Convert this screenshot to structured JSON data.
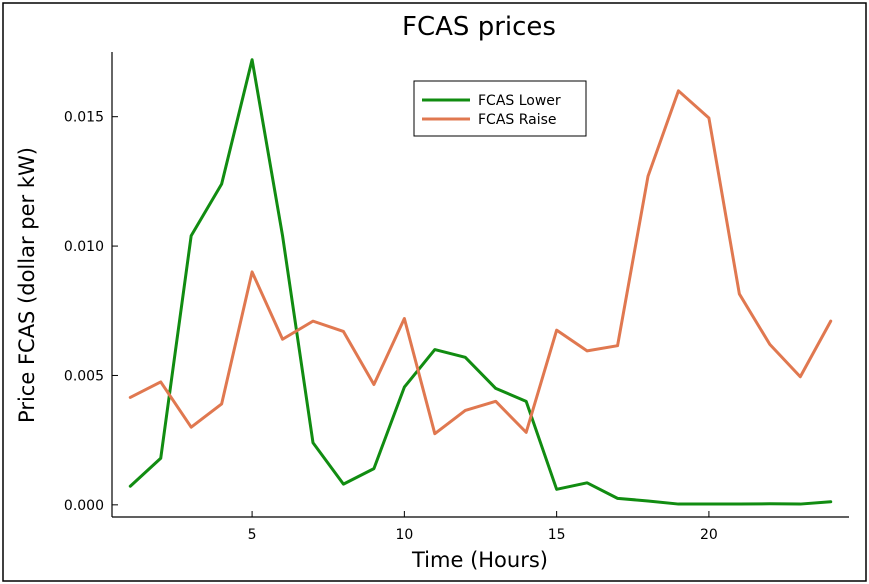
{
  "chart_data": {
    "type": "line",
    "title": "FCAS prices",
    "xlabel": "Time (Hours)",
    "ylabel": "Price FCAS (dollar per kW)",
    "xlim": [
      0.4,
      24.6
    ],
    "ylim": [
      -0.00047,
      0.0175
    ],
    "xticks": [
      5,
      10,
      15,
      20
    ],
    "xtick_labels": [
      "5",
      "10",
      "15",
      "20"
    ],
    "yticks": [
      0.0,
      0.005,
      0.01,
      0.015
    ],
    "ytick_labels": [
      "0.000",
      "0.005",
      "0.010",
      "0.015"
    ],
    "grid": false,
    "legend_position": "top-center",
    "x": [
      1,
      2,
      3,
      4,
      5,
      6,
      7,
      8,
      9,
      10,
      11,
      12,
      13,
      14,
      15,
      16,
      17,
      18,
      19,
      20,
      21,
      22,
      23,
      24
    ],
    "series": [
      {
        "name": "FCAS Lower",
        "color": "#118c11",
        "values": [
          0.00072,
          0.0018,
          0.0104,
          0.0124,
          0.0172,
          0.0104,
          0.0024,
          0.0008,
          0.0014,
          0.00455,
          0.006,
          0.0057,
          0.0045,
          0.004,
          0.0006,
          0.00085,
          0.00025,
          0.00015,
          3e-05,
          3e-05,
          3e-05,
          4e-05,
          3e-05,
          0.00012
        ]
      },
      {
        "name": "FCAS Raise",
        "color": "#e07850",
        "values": [
          0.00415,
          0.00475,
          0.003,
          0.0039,
          0.009,
          0.0064,
          0.0071,
          0.0067,
          0.00465,
          0.0072,
          0.00275,
          0.00365,
          0.004,
          0.0028,
          0.00675,
          0.00595,
          0.00615,
          0.0127,
          0.016,
          0.01495,
          0.00815,
          0.0062,
          0.00495,
          0.0071
        ]
      }
    ]
  }
}
